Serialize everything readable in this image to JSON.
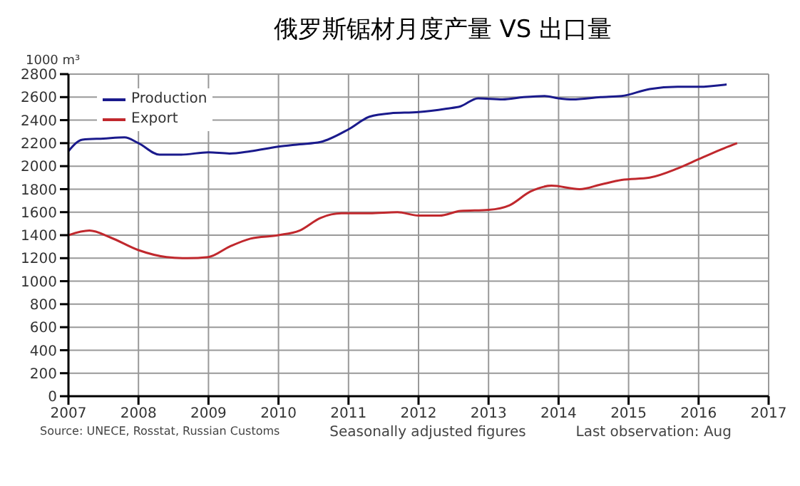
{
  "chart_data": {
    "type": "line",
    "title": "俄罗斯锯材月度产量 VS 出口量",
    "ylabel": "1000 m³",
    "xlim": [
      2007,
      2017
    ],
    "xticks": [
      2007,
      2008,
      2009,
      2010,
      2011,
      2012,
      2013,
      2014,
      2015,
      2016,
      2017
    ],
    "ylim": [
      0,
      2800
    ],
    "yticks": [
      0,
      200,
      400,
      600,
      800,
      1000,
      1200,
      1400,
      1600,
      1800,
      2000,
      2200,
      2400,
      2600,
      2800
    ],
    "grid": true,
    "legend": "top left",
    "marker": "none",
    "line_style": "solid",
    "annotations": [
      "Source: UNECE, Rosstat, Russian Customs",
      "Seasonally adjusted figures",
      "Last observation: Aug"
    ],
    "series": [
      {
        "name": "Production",
        "color": "#1a1a8c",
        "x": [
          2007.0,
          2007.2,
          2007.5,
          2007.8,
          2008.0,
          2008.3,
          2008.6,
          2009.0,
          2009.3,
          2009.6,
          2010.0,
          2010.3,
          2010.6,
          2011.0,
          2011.3,
          2011.6,
          2012.0,
          2012.4,
          2012.6,
          2012.85,
          2013.2,
          2013.5,
          2013.8,
          2014.0,
          2014.2,
          2014.6,
          2014.9,
          2015.3,
          2015.7,
          2016.0,
          2016.4
        ],
        "values": [
          2130,
          2230,
          2240,
          2250,
          2200,
          2100,
          2100,
          2120,
          2110,
          2130,
          2170,
          2190,
          2210,
          2320,
          2430,
          2460,
          2470,
          2500,
          2520,
          2590,
          2580,
          2600,
          2610,
          2590,
          2580,
          2600,
          2610,
          2670,
          2690,
          2690,
          2710
        ]
      },
      {
        "name": "Export",
        "color": "#c0282d",
        "x": [
          2007.0,
          2007.3,
          2007.6,
          2008.0,
          2008.4,
          2008.7,
          2009.0,
          2009.3,
          2009.6,
          2010.0,
          2010.3,
          2010.6,
          2010.9,
          2011.3,
          2011.7,
          2012.0,
          2012.3,
          2012.6,
          2013.0,
          2013.3,
          2013.6,
          2013.9,
          2014.3,
          2014.6,
          2014.9,
          2015.3,
          2015.7,
          2016.0,
          2016.3,
          2016.55
        ],
        "values": [
          1400,
          1440,
          1380,
          1270,
          1210,
          1200,
          1210,
          1300,
          1370,
          1400,
          1440,
          1550,
          1590,
          1590,
          1600,
          1570,
          1570,
          1610,
          1620,
          1660,
          1780,
          1830,
          1800,
          1840,
          1880,
          1900,
          1980,
          2060,
          2140,
          2200
        ]
      }
    ]
  }
}
